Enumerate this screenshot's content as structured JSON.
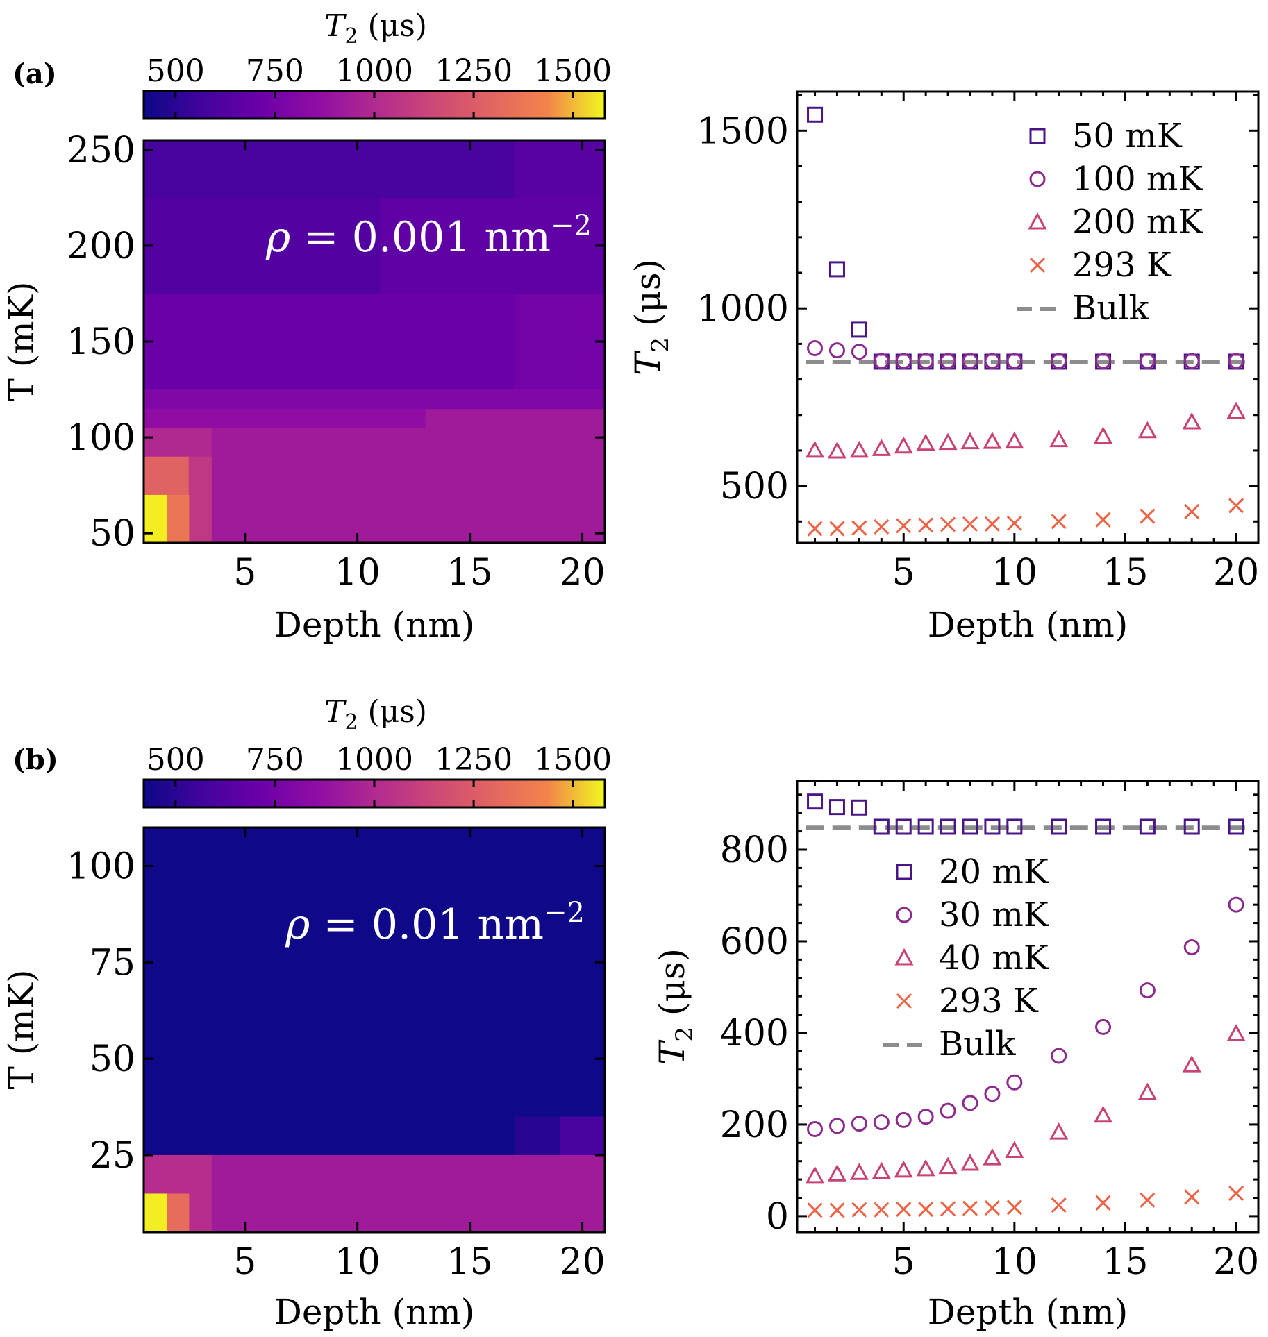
{
  "colors": {
    "bulk_line": "#8c8c8c",
    "series_1": "#4a1587",
    "series_2": "#8d2a8f",
    "series_3": "#c84274",
    "series_4": "#ee6346",
    "heatmap_text": "#ffffff"
  },
  "chart_data": [
    {
      "panel": "a",
      "panel_label": "(a)",
      "type": "heatmap",
      "colorbar": {
        "label_main": "T",
        "label_sub": "2",
        "label_unit": " (μs)",
        "min": 420,
        "max": 1580,
        "ticks": [
          "500",
          "750",
          "1000",
          "1250",
          "1500"
        ],
        "tick_values": [
          500,
          750,
          1000,
          1250,
          1500
        ]
      },
      "xlabel": "Depth (nm)",
      "ylabel": "T (mK)",
      "xlim": [
        0.5,
        21
      ],
      "ylim": [
        45,
        255
      ],
      "xticks": [
        "5",
        "10",
        "15",
        "20"
      ],
      "xtick_values": [
        5,
        10,
        15,
        20
      ],
      "yticks": [
        "50",
        "100",
        "150",
        "200",
        "250"
      ],
      "ytick_values": [
        50,
        100,
        150,
        200,
        250
      ],
      "annotation": {
        "rho": "ρ",
        "eq": " = 0.001 nm",
        "exp": "−2"
      },
      "default_value": 825,
      "cells": [
        {
          "x0": 0.5,
          "x1": 21,
          "y0": 225,
          "y1": 255,
          "v": 560
        },
        {
          "x0": 17,
          "x1": 21,
          "y0": 225,
          "y1": 255,
          "v": 600
        },
        {
          "x0": 0.5,
          "x1": 21,
          "y0": 175,
          "y1": 225,
          "v": 580
        },
        {
          "x0": 11,
          "x1": 21,
          "y0": 175,
          "y1": 225,
          "v": 620
        },
        {
          "x0": 0.5,
          "x1": 21,
          "y0": 125,
          "y1": 175,
          "v": 650
        },
        {
          "x0": 17,
          "x1": 21,
          "y0": 125,
          "y1": 175,
          "v": 680
        },
        {
          "x0": 0.5,
          "x1": 21,
          "y0": 115,
          "y1": 125,
          "v": 720
        },
        {
          "x0": 0.5,
          "x1": 13,
          "y0": 105,
          "y1": 115,
          "v": 770
        },
        {
          "x0": 0.5,
          "x1": 3.5,
          "y0": 90,
          "y1": 105,
          "v": 880
        },
        {
          "x0": 0.5,
          "x1": 2.5,
          "y0": 70,
          "y1": 90,
          "v": 1110
        },
        {
          "x0": 2.5,
          "x1": 3.5,
          "y0": 45,
          "y1": 90,
          "v": 940
        },
        {
          "x0": 1.5,
          "x1": 2.5,
          "y0": 45,
          "y1": 70,
          "v": 1180
        },
        {
          "x0": 0.5,
          "x1": 1.5,
          "y0": 45,
          "y1": 70,
          "v": 1550
        }
      ]
    },
    {
      "panel": "a",
      "type": "scatter",
      "xlabel": "Depth (nm)",
      "ylabel_main": "T",
      "ylabel_sub": "2",
      "ylabel_unit": " (μs)",
      "xlim": [
        0.2,
        21
      ],
      "ylim": [
        340,
        1610
      ],
      "xticks": [
        "5",
        "10",
        "15",
        "20"
      ],
      "xtick_values": [
        5,
        10,
        15,
        20
      ],
      "yticks": [
        "500",
        "1000",
        "1500"
      ],
      "ytick_values": [
        500,
        1000,
        1500
      ],
      "bulk": {
        "name": "Bulk",
        "value": 850
      },
      "legend_position": "top-right",
      "x": [
        1,
        2,
        3,
        4,
        5,
        6,
        7,
        8,
        9,
        10,
        12,
        14,
        16,
        18,
        20
      ],
      "series": [
        {
          "name": "50 mK",
          "marker": "square",
          "values": [
            1545,
            1110,
            940,
            850,
            850,
            850,
            850,
            850,
            850,
            850,
            850,
            850,
            850,
            850,
            850
          ]
        },
        {
          "name": "100 mK",
          "marker": "circle",
          "values": [
            888,
            882,
            878,
            852,
            852,
            852,
            852,
            852,
            852,
            852,
            852,
            852,
            852,
            852,
            852
          ]
        },
        {
          "name": "200 mK",
          "marker": "triangle",
          "values": [
            600,
            598,
            600,
            605,
            612,
            620,
            622,
            624,
            625,
            626,
            630,
            640,
            655,
            680,
            710
          ]
        },
        {
          "name": "293 K",
          "marker": "x",
          "values": [
            380,
            380,
            382,
            385,
            388,
            390,
            392,
            393,
            393,
            395,
            400,
            405,
            415,
            428,
            445
          ]
        }
      ]
    },
    {
      "panel": "b",
      "panel_label": "(b)",
      "type": "heatmap",
      "colorbar": {
        "label_main": "T",
        "label_sub": "2",
        "label_unit": " (μs)",
        "min": 420,
        "max": 1580,
        "ticks": [
          "500",
          "750",
          "1000",
          "1250",
          "1500"
        ],
        "tick_values": [
          500,
          750,
          1000,
          1250,
          1500
        ]
      },
      "xlabel": "Depth (nm)",
      "ylabel": "T (mK)",
      "xlim": [
        0.5,
        21
      ],
      "ylim": [
        5,
        110
      ],
      "xticks": [
        "5",
        "10",
        "15",
        "20"
      ],
      "xtick_values": [
        5,
        10,
        15,
        20
      ],
      "yticks": [
        "25",
        "50",
        "75",
        "100"
      ],
      "ytick_values": [
        25,
        50,
        75,
        100
      ],
      "annotation": {
        "rho": "ρ",
        "eq": " = 0.01 nm",
        "exp": "−2"
      },
      "default_value": 425,
      "cells": [
        {
          "x0": 17,
          "x1": 19,
          "y0": 25,
          "y1": 35,
          "v": 480
        },
        {
          "x0": 19,
          "x1": 21,
          "y0": 25,
          "y1": 35,
          "v": 560
        },
        {
          "x0": 0.5,
          "x1": 21,
          "y0": 5,
          "y1": 25,
          "v": 825
        },
        {
          "x0": 2.5,
          "x1": 3.5,
          "y0": 5,
          "y1": 25,
          "v": 900
        },
        {
          "x0": 0.5,
          "x1": 2.5,
          "y0": 15,
          "y1": 25,
          "v": 900
        },
        {
          "x0": 1.5,
          "x1": 2.5,
          "y0": 5,
          "y1": 15,
          "v": 1150
        },
        {
          "x0": 0.5,
          "x1": 1.5,
          "y0": 5,
          "y1": 15,
          "v": 1550
        }
      ]
    },
    {
      "panel": "b",
      "type": "scatter",
      "xlabel": "Depth (nm)",
      "ylabel_main": "T",
      "ylabel_sub": "2",
      "ylabel_unit": " (μs)",
      "xlim": [
        0.2,
        21
      ],
      "ylim": [
        -35,
        950
      ],
      "xticks": [
        "5",
        "10",
        "15",
        "20"
      ],
      "xtick_values": [
        5,
        10,
        15,
        20
      ],
      "yticks": [
        "0",
        "200",
        "400",
        "600",
        "800"
      ],
      "ytick_values": [
        0,
        200,
        400,
        600,
        800
      ],
      "bulk": {
        "name": "Bulk",
        "value": 848
      },
      "legend_position": "middle-left",
      "x": [
        1,
        2,
        3,
        4,
        5,
        6,
        7,
        8,
        9,
        10,
        12,
        14,
        16,
        18,
        20
      ],
      "series": [
        {
          "name": "20 mK",
          "marker": "square",
          "values": [
            905,
            893,
            892,
            850,
            850,
            850,
            850,
            850,
            850,
            850,
            850,
            850,
            850,
            850,
            850
          ]
        },
        {
          "name": "30 mK",
          "marker": "circle",
          "values": [
            190,
            197,
            202,
            205,
            210,
            217,
            230,
            247,
            267,
            292,
            350,
            413,
            493,
            587,
            680
          ]
        },
        {
          "name": "40 mK",
          "marker": "triangle",
          "values": [
            88,
            92,
            95,
            97,
            100,
            103,
            108,
            115,
            127,
            143,
            183,
            220,
            270,
            330,
            398
          ]
        },
        {
          "name": "293 K",
          "marker": "x",
          "values": [
            13,
            13,
            14,
            14,
            15,
            15,
            16,
            17,
            18,
            19,
            24,
            29,
            35,
            42,
            50
          ]
        }
      ]
    }
  ]
}
